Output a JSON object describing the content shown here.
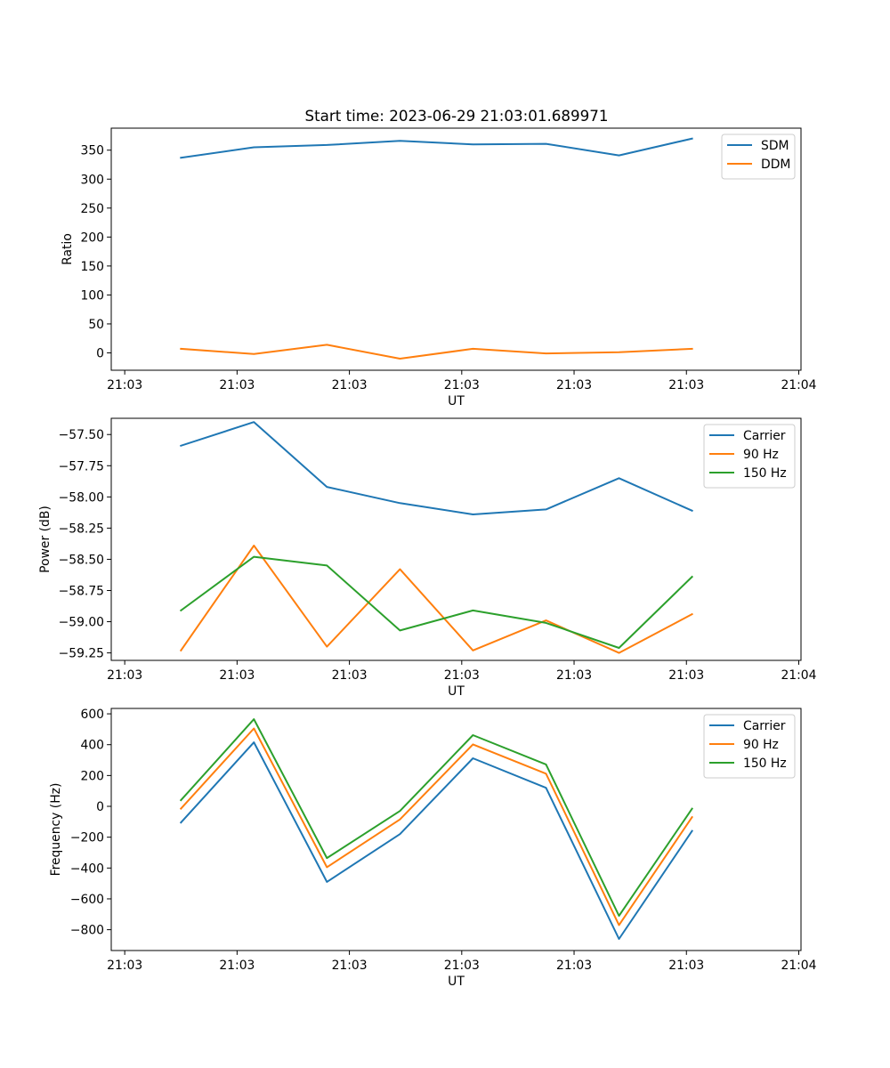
{
  "figure": {
    "title": "Start time: 2023-06-29 21:03:01.689971"
  },
  "colors": {
    "blue": "#1f77b4",
    "orange": "#ff7f0e",
    "green": "#2ca02c"
  },
  "chart_data": [
    {
      "type": "line",
      "title": "Start time: 2023-06-29 21:03:01.689971",
      "xlabel": "UT",
      "ylabel": "Ratio",
      "x_tick_labels": [
        "21:03",
        "21:03",
        "21:03",
        "21:03",
        "21:03",
        "21:03",
        "21:04"
      ],
      "xlim": [
        -0.12,
        6.02
      ],
      "ylim": [
        -30,
        388
      ],
      "y_ticks": [
        0,
        50,
        100,
        150,
        200,
        250,
        300,
        350
      ],
      "y_tick_labels": [
        "0",
        "50",
        "100",
        "150",
        "200",
        "250",
        "300",
        "350"
      ],
      "legend": "top-right",
      "grid": false,
      "x": [
        0.5,
        1.15,
        1.8,
        2.45,
        3.1,
        3.75,
        4.4,
        5.05
      ],
      "series": [
        {
          "name": "SDM",
          "color": "#1f77b4",
          "values": [
            337,
            355,
            359,
            366,
            360,
            361,
            341,
            370
          ]
        },
        {
          "name": "DDM",
          "color": "#ff7f0e",
          "values": [
            7,
            -2,
            14,
            -10,
            7,
            -1,
            1,
            7
          ]
        }
      ]
    },
    {
      "type": "line",
      "xlabel": "UT",
      "ylabel": "Power (dB)",
      "x_tick_labels": [
        "21:03",
        "21:03",
        "21:03",
        "21:03",
        "21:03",
        "21:03",
        "21:04"
      ],
      "xlim": [
        -0.12,
        6.02
      ],
      "ylim": [
        -59.31,
        -57.37
      ],
      "y_ticks": [
        -59.25,
        -59.0,
        -58.75,
        -58.5,
        -58.25,
        -58.0,
        -57.75,
        -57.5
      ],
      "y_tick_labels": [
        "−59.25",
        "−59.00",
        "−58.75",
        "−58.50",
        "−58.25",
        "−58.00",
        "−57.75",
        "−57.50"
      ],
      "legend": "top-right",
      "grid": false,
      "x": [
        0.5,
        1.15,
        1.8,
        2.45,
        3.1,
        3.75,
        4.4,
        5.05
      ],
      "series": [
        {
          "name": "Carrier",
          "color": "#1f77b4",
          "values": [
            -57.59,
            -57.4,
            -57.92,
            -58.05,
            -58.14,
            -58.1,
            -57.85,
            -58.11
          ]
        },
        {
          "name": "90 Hz",
          "color": "#ff7f0e",
          "values": [
            -59.23,
            -58.39,
            -59.2,
            -58.58,
            -59.23,
            -58.99,
            -59.25,
            -58.94
          ]
        },
        {
          "name": "150 Hz",
          "color": "#2ca02c",
          "values": [
            -58.91,
            -58.48,
            -58.55,
            -59.07,
            -58.91,
            -59.01,
            -59.21,
            -58.64
          ]
        }
      ]
    },
    {
      "type": "line",
      "xlabel": "UT",
      "ylabel": "Frequency (Hz)",
      "x_tick_labels": [
        "21:03",
        "21:03",
        "21:03",
        "21:03",
        "21:03",
        "21:03",
        "21:04"
      ],
      "xlim": [
        -0.12,
        6.02
      ],
      "ylim": [
        -935,
        635
      ],
      "y_ticks": [
        -800,
        -600,
        -400,
        -200,
        0,
        200,
        400,
        600
      ],
      "y_tick_labels": [
        "−800",
        "−600",
        "−400",
        "−200",
        "0",
        "200",
        "400",
        "600"
      ],
      "legend": "top-right",
      "grid": false,
      "x": [
        0.5,
        1.15,
        1.8,
        2.45,
        3.1,
        3.75,
        4.4,
        5.05
      ],
      "series": [
        {
          "name": "Carrier",
          "color": "#1f77b4",
          "values": [
            -105,
            415,
            -490,
            -180,
            312,
            120,
            -860,
            -160
          ]
        },
        {
          "name": "90 Hz",
          "color": "#ff7f0e",
          "values": [
            -15,
            505,
            -395,
            -85,
            402,
            212,
            -770,
            -70
          ]
        },
        {
          "name": "150 Hz",
          "color": "#2ca02c",
          "values": [
            40,
            565,
            -335,
            -30,
            462,
            272,
            -710,
            -15
          ]
        }
      ]
    }
  ]
}
